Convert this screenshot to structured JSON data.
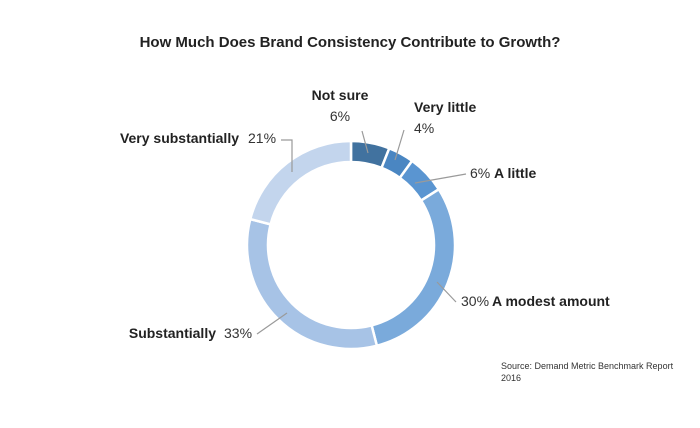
{
  "chart_data": {
    "type": "pie",
    "style": "donut",
    "title": "How Much Does Brand Consistency Contribute to Growth?",
    "slices": [
      {
        "label": "Not sure",
        "value": 6,
        "value_label": "6%",
        "color": "#41729f"
      },
      {
        "label": "Very little",
        "value": 4,
        "value_label": "4%",
        "color": "#4a86c2"
      },
      {
        "label": "A little",
        "value": 6,
        "value_label": "6%",
        "color": "#5a95d1"
      },
      {
        "label": "A modest amount",
        "value": 30,
        "value_label": "30%",
        "color": "#7aaadb"
      },
      {
        "label": "Substantially",
        "value": 33,
        "value_label": "33%",
        "color": "#a7c3e6"
      },
      {
        "label": "Very substantially",
        "value": 21,
        "value_label": "21%",
        "color": "#c3d5ed"
      }
    ]
  },
  "source": {
    "line1": "Source: Demand Metric Benchmark Report",
    "line2": "2016"
  }
}
